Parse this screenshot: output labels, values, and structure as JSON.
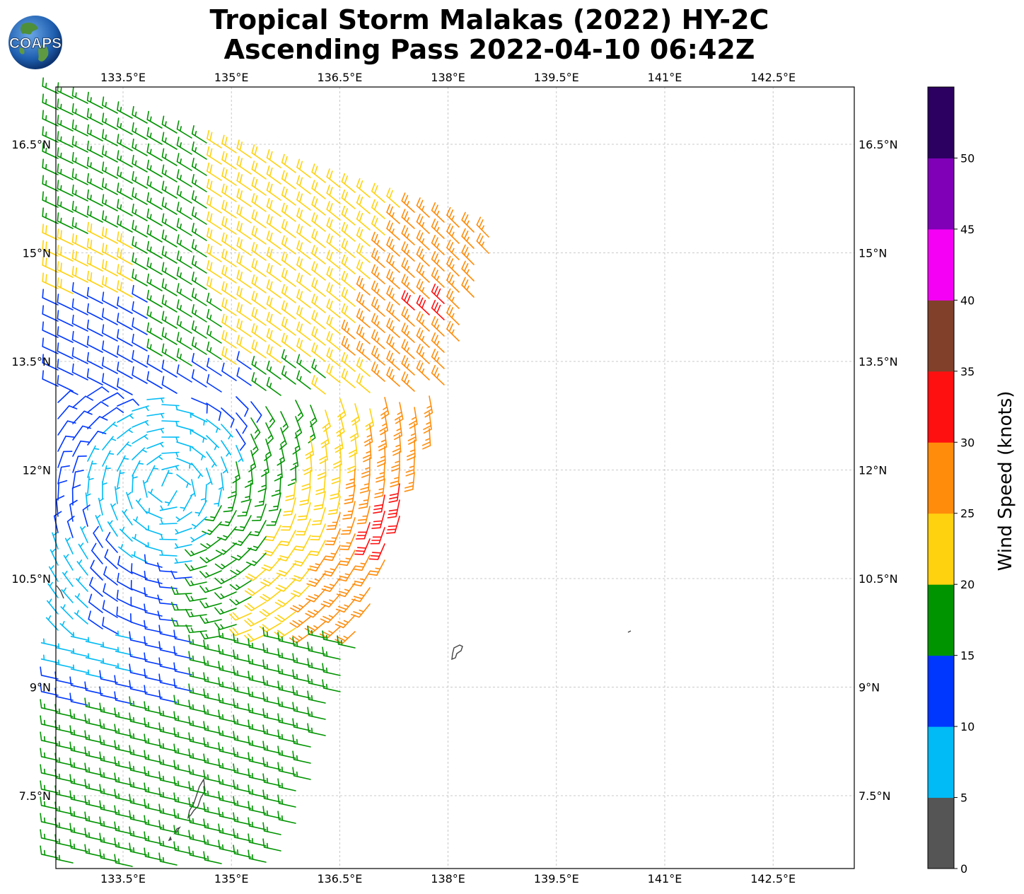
{
  "title": {
    "line1": "Tropical Storm Malakas (2022) HY-2C",
    "line2": "Ascending Pass 2022-04-10 06:42Z"
  },
  "logo": {
    "text": "COAPS",
    "icon": "globe-icon"
  },
  "map": {
    "lon_ticks": [
      "133.5°E",
      "135°E",
      "136.5°E",
      "138°E",
      "139.5°E",
      "141°E",
      "142.5°E"
    ],
    "lat_ticks": [
      "16.5°N",
      "15°N",
      "13.5°N",
      "12°N",
      "10.5°N",
      "9°N",
      "7.5°N"
    ],
    "gridlines": true,
    "barb_icon": "wind-barb-icon"
  },
  "colorbar": {
    "label": "Wind Speed (knots)",
    "ticks": [
      "0",
      "5",
      "10",
      "15",
      "20",
      "25",
      "30",
      "35",
      "40",
      "45",
      "50"
    ],
    "colors": [
      "#555555",
      "#00bbf5",
      "#0037ff",
      "#009400",
      "#ffd20f",
      "#ff8c0a",
      "#ff1010",
      "#80402a",
      "#f500f5",
      "#8000b8",
      "#2b0060"
    ]
  }
}
